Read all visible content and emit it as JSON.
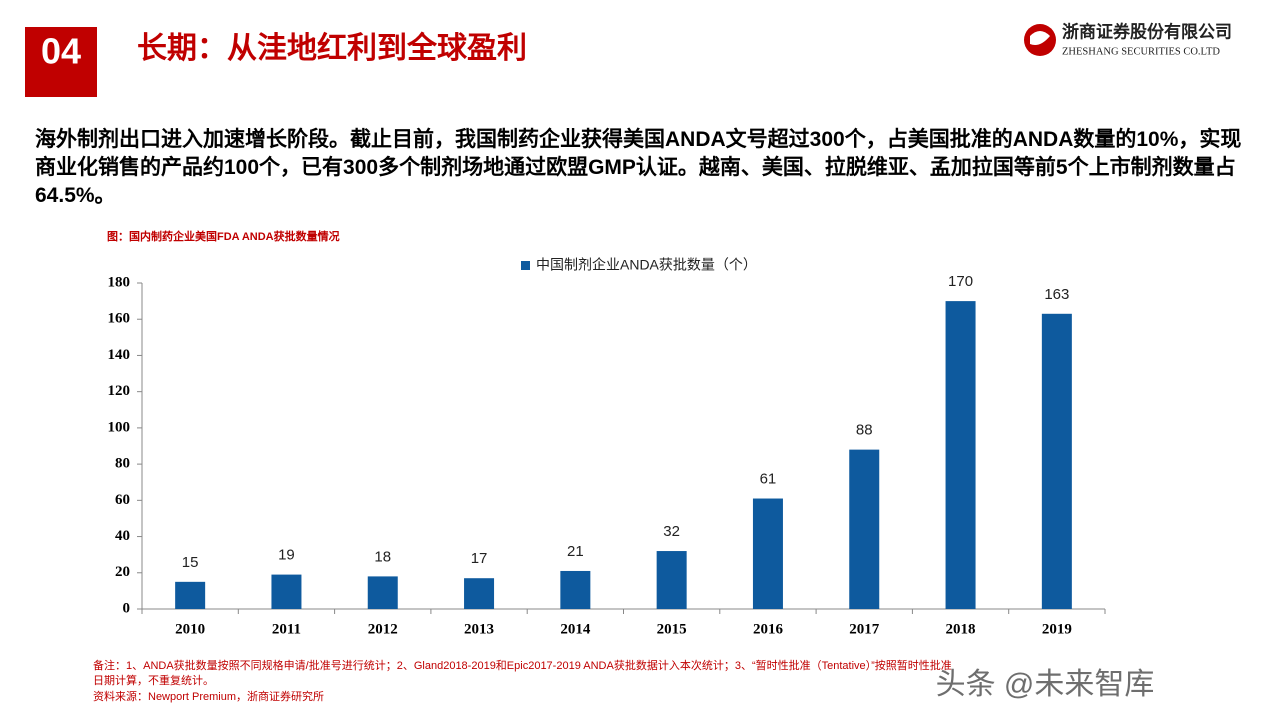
{
  "header": {
    "number": "04",
    "title": "长期：从洼地红利到全球盈利",
    "company": "浙商证券股份有限公司",
    "company_en": "ZHESHANG SECURITIES CO.LTD"
  },
  "paragraph": "海外制剂出口进入加速增长阶段。截止目前，我国制药企业获得美国ANDA文号超过300个，占美国批准的ANDA数量的10%，实现商业化销售的产品约100个，已有300多个制剂场地通过欧盟GMP认证。越南、美国、拉脱维亚、孟加拉国等前5个上市制剂数量占64.5%。",
  "figure_caption": "图：国内制药企业美国FDA ANDA获批数量情况",
  "chart_data": {
    "type": "bar",
    "categories": [
      "2010",
      "2011",
      "2012",
      "2013",
      "2014",
      "2015",
      "2016",
      "2017",
      "2018",
      "2019"
    ],
    "series": [
      {
        "name": "中国制剂企业ANDA获批数量（个）",
        "color": "#0e5a9e",
        "values": [
          15,
          19,
          18,
          17,
          21,
          32,
          61,
          88,
          170,
          163
        ]
      }
    ],
    "ylim": [
      0,
      180
    ],
    "yticks": [
      0,
      20,
      40,
      60,
      80,
      100,
      120,
      140,
      160,
      180
    ],
    "legend": "top"
  },
  "notes": "备注：1、ANDA获批数量按照不同规格申请/批准号进行统计；2、Gland2018-2019和Epic2017-2019 ANDA获批数据计入本次统计；3、“暂时性批准（Tentative）”按照暂时性批准日期计算，不重复统计。",
  "source": "资料来源：Newport Premium，浙商证券研究所",
  "watermark": "头条 @未来智库"
}
